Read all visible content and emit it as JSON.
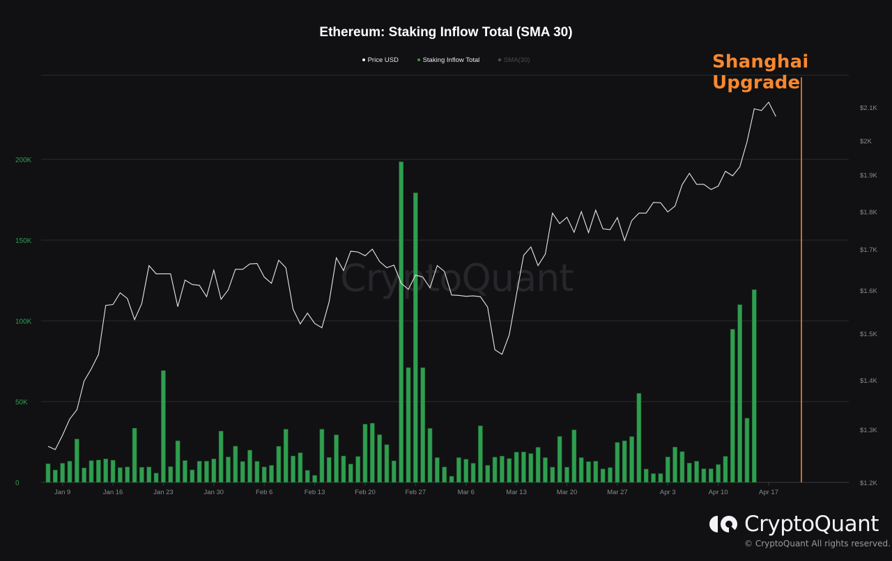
{
  "header": {
    "title": "Ethereum: Staking Inflow Total (SMA 30)"
  },
  "legend": [
    {
      "label": "Price USD",
      "color": "#ffffff"
    },
    {
      "label": "Staking Inflow Total",
      "color": "#2f9e4f"
    },
    {
      "label": "SMA(30)",
      "color": "#4a4a52"
    }
  ],
  "annotation": {
    "label": "Shanghai Upgrade",
    "color": "#f7882f",
    "date_index": 106
  },
  "watermark": "CryptoQuant",
  "footer": {
    "brand": "CryptoQuant",
    "copyright": "© CryptoQuant All rights reserved."
  },
  "colors": {
    "background": "#111113",
    "bar": "#2f9e4f",
    "price_line": "#e8e8ea",
    "grid": "#2a2a2e",
    "left_axis_text": "#2f9e4f",
    "right_axis_text": "#8a8a90",
    "annotation": "#f7882f"
  },
  "chart_data": {
    "type": "bar+line",
    "title": "Ethereum: Staking Inflow Total (SMA 30)",
    "xlabel": "",
    "ylabel_left": "Staking Inflow Total",
    "ylabel_right": "Price USD",
    "ylim_left": [
      0,
      250000
    ],
    "ylim_right": [
      1200,
      2200
    ],
    "grid": true,
    "legend_position": "top-center",
    "x_start": "Jan 7",
    "x_end": "Apr 16",
    "x_tick_labels": [
      "Jan 9",
      "Jan 16",
      "Jan 23",
      "Jan 30",
      "Feb 6",
      "Feb 13",
      "Feb 20",
      "Feb 27",
      "Mar 6",
      "Mar 13",
      "Mar 20",
      "Mar 27",
      "Apr 3",
      "Apr 10",
      "Apr 17"
    ],
    "x_tick_indices": [
      2,
      9,
      16,
      23,
      30,
      37,
      44,
      51,
      58,
      65,
      72,
      79,
      86,
      93,
      100
    ],
    "left_ticks": [
      "0",
      "50K",
      "100K",
      "150K",
      "200K"
    ],
    "left_tick_values": [
      0,
      50000,
      100000,
      150000,
      200000
    ],
    "right_ticks": [
      "$1.2K",
      "$1.3K",
      "$1.4K",
      "$1.5K",
      "$1.6K",
      "$1.7K",
      "$1.8K",
      "$1.9K",
      "$2K",
      "$2.1K"
    ],
    "right_tick_values": [
      1200,
      1300,
      1400,
      1500,
      1600,
      1700,
      1800,
      1900,
      2000,
      2100
    ],
    "series": [
      {
        "name": "Staking Inflow Total",
        "type": "bar",
        "color": "#2f9e4f",
        "axis": "left",
        "values": [
          11500,
          7600,
          11800,
          13100,
          26800,
          8900,
          13400,
          13800,
          14500,
          13700,
          9100,
          9500,
          33500,
          9300,
          9500,
          5700,
          69200,
          9700,
          25700,
          13500,
          7700,
          13100,
          13100,
          14500,
          31700,
          15700,
          22400,
          12900,
          19900,
          13000,
          9500,
          10500,
          22300,
          32900,
          16300,
          18300,
          7400,
          4300,
          32900,
          15400,
          29400,
          16300,
          11300,
          16000,
          36000,
          36600,
          29500,
          23300,
          13300,
          198500,
          71000,
          179300,
          71000,
          33400,
          15300,
          9500,
          3700,
          15300,
          14300,
          11800,
          35000,
          10500,
          15600,
          16200,
          14700,
          18700,
          18800,
          17800,
          21700,
          15300,
          9400,
          28400,
          9400,
          32500,
          15300,
          12800,
          13100,
          8300,
          9100,
          24700,
          25700,
          28300,
          55100,
          8200,
          5400,
          5400,
          15700,
          21800,
          19000,
          11900,
          13100,
          8400,
          8400,
          11000,
          16100,
          94800,
          110000,
          39700,
          119300
        ],
        "x_offset_index": 0
      },
      {
        "name": "Price USD",
        "type": "line",
        "color": "#e8e8ea",
        "axis": "right",
        "values": [
          1268,
          1262,
          1289,
          1321,
          1340,
          1398,
          1424,
          1455,
          1565,
          1567,
          1594,
          1581,
          1532,
          1569,
          1660,
          1640,
          1640,
          1640,
          1562,
          1625,
          1614,
          1612,
          1585,
          1649,
          1579,
          1601,
          1651,
          1651,
          1664,
          1665,
          1632,
          1617,
          1673,
          1655,
          1556,
          1522,
          1547,
          1523,
          1513,
          1573,
          1679,
          1648,
          1695,
          1693,
          1684,
          1700,
          1670,
          1655,
          1661,
          1617,
          1602,
          1637,
          1632,
          1606,
          1660,
          1646,
          1589,
          1588,
          1586,
          1587,
          1585,
          1561,
          1465,
          1455,
          1497,
          1590,
          1685,
          1706,
          1660,
          1688,
          1796,
          1768,
          1785,
          1745,
          1800,
          1744,
          1804,
          1754,
          1752,
          1784,
          1723,
          1776,
          1796,
          1796,
          1825,
          1824,
          1799,
          1815,
          1873,
          1904,
          1874,
          1874,
          1860,
          1869,
          1910,
          1897,
          1923,
          1997,
          2095,
          2090,
          2115,
          2072
        ]
      },
      {
        "name": "SMA(30)",
        "type": "line",
        "color": "#4a4a52",
        "axis": "left",
        "hidden": true,
        "values": []
      }
    ]
  }
}
